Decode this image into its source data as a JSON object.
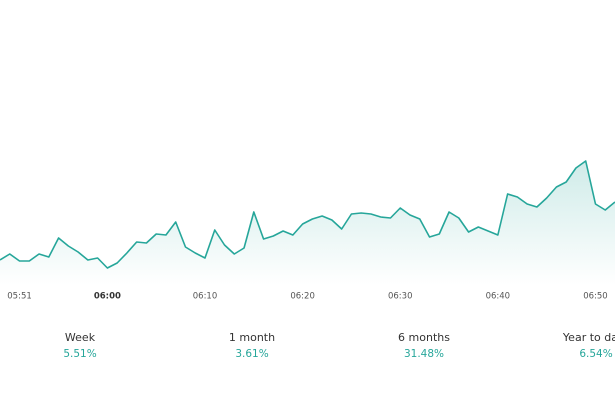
{
  "chart_data": {
    "type": "area",
    "categories": [
      null,
      null,
      "05:51",
      null,
      null,
      null,
      null,
      null,
      null,
      null,
      null,
      "06:00",
      null,
      null,
      null,
      null,
      null,
      null,
      null,
      null,
      null,
      "06:10",
      null,
      null,
      null,
      null,
      null,
      null,
      null,
      null,
      null,
      "06:20",
      null,
      null,
      null,
      null,
      null,
      null,
      null,
      null,
      null,
      "06:30",
      null,
      null,
      null,
      null,
      null,
      null,
      null,
      null,
      null,
      "06:40",
      null,
      null,
      null,
      null,
      null,
      null,
      null,
      null,
      null,
      "06:50",
      null,
      null
    ],
    "values": [
      25,
      31,
      24,
      24,
      31,
      28,
      47,
      39,
      33,
      25,
      27,
      17,
      22,
      32,
      43,
      42,
      51,
      50,
      63,
      38,
      32,
      27,
      55,
      40,
      31,
      37,
      73,
      46,
      49,
      54,
      50,
      61,
      66,
      69,
      65,
      56,
      71,
      72,
      71,
      68,
      67,
      77,
      70,
      66,
      48,
      51,
      73,
      67,
      53,
      58,
      54,
      50,
      91,
      88,
      81,
      78,
      87,
      98,
      103,
      117,
      124,
      81,
      75,
      83
    ],
    "color": "#26a69a",
    "ylim": [
      0,
      285
    ],
    "grid": false
  },
  "stats": [
    {
      "label": "Week",
      "value": "5.51%"
    },
    {
      "label": "1 month",
      "value": "3.61%"
    },
    {
      "label": "6 months",
      "value": "31.48%"
    },
    {
      "label": "Year to date",
      "value": "6.54%"
    }
  ]
}
